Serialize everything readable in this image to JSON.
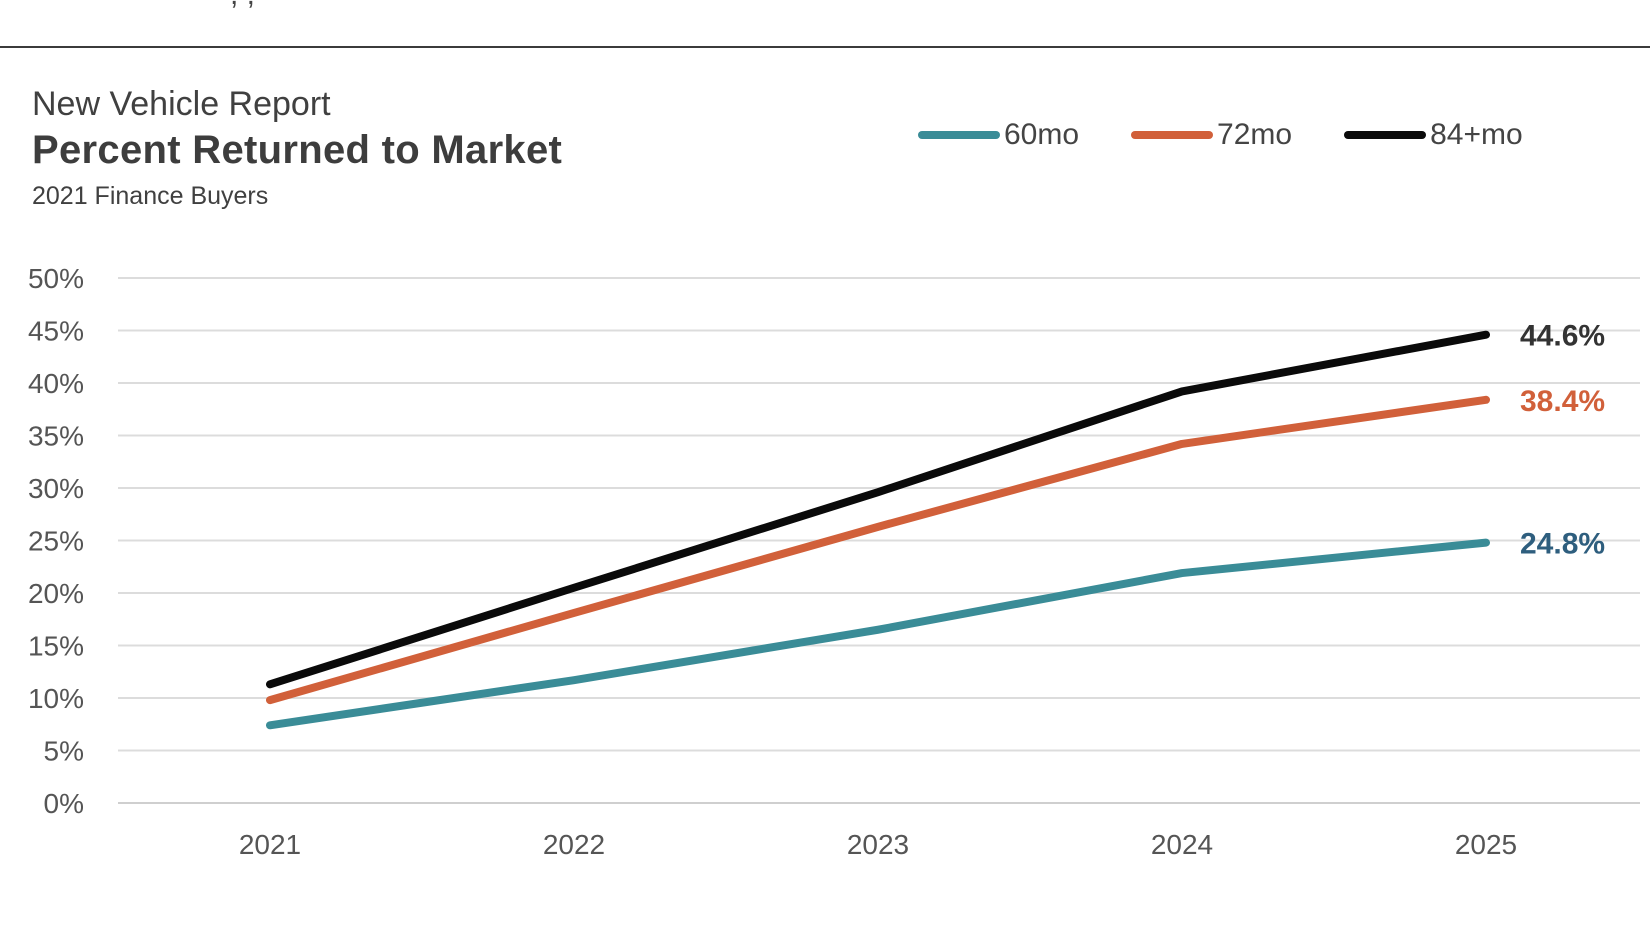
{
  "header": {
    "cut_text": ", ,"
  },
  "chart_data": {
    "type": "line",
    "supertitle": "New Vehicle Report",
    "title": "Percent Returned to Market",
    "subtitle": "2021 Finance Buyers",
    "categories": [
      "2021",
      "2022",
      "2023",
      "2024",
      "2025"
    ],
    "ylim": [
      0,
      50
    ],
    "yticks": [
      0,
      5,
      10,
      15,
      20,
      25,
      30,
      35,
      40,
      45,
      50
    ],
    "ytick_suffix": "%",
    "grid": true,
    "legend_position": "top-right",
    "series": [
      {
        "name": "60mo",
        "color": "#3A8C97",
        "label_color": "#2E5E7E",
        "values": [
          7.4,
          11.7,
          16.5,
          21.9,
          24.8
        ],
        "end_label": "24.8%"
      },
      {
        "name": "72mo",
        "color": "#D1603A",
        "label_color": "#D1603A",
        "values": [
          9.8,
          18.1,
          26.3,
          34.2,
          38.4
        ],
        "end_label": "38.4%"
      },
      {
        "name": "84+mo",
        "color": "#0A0A0A",
        "label_color": "#333333",
        "values": [
          11.3,
          20.5,
          29.6,
          39.2,
          44.6
        ],
        "end_label": "44.6%"
      }
    ]
  }
}
